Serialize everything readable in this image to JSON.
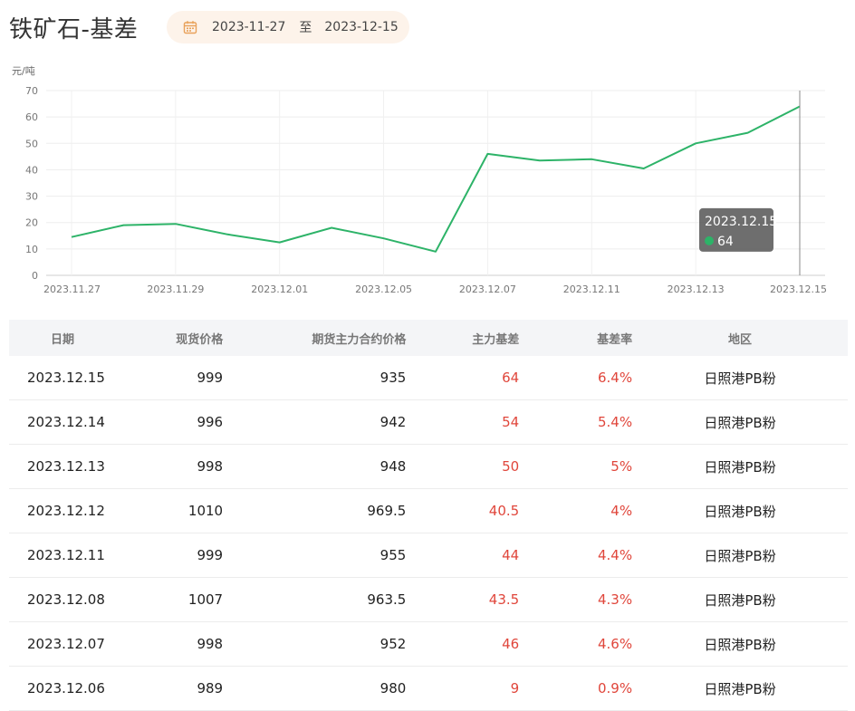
{
  "header": {
    "title": "铁矿石-基差",
    "date_start": "2023-11-27",
    "date_sep": "至",
    "date_end": "2023-12-15",
    "calendar_icon": "calendar-icon",
    "accent_color": "#e8a15a"
  },
  "chart_data": {
    "type": "line",
    "ylabel": "元/吨",
    "ylim": [
      0,
      70
    ],
    "yticks": [
      0,
      10,
      20,
      30,
      40,
      50,
      60,
      70
    ],
    "x": [
      "2023.11.27",
      "2023.11.28",
      "2023.11.29",
      "2023.11.30",
      "2023.12.01",
      "2023.12.04",
      "2023.12.05",
      "2023.12.06",
      "2023.12.07",
      "2023.12.08",
      "2023.12.11",
      "2023.12.12",
      "2023.12.13",
      "2023.12.14",
      "2023.12.15"
    ],
    "xtick_labels": [
      "2023.11.27",
      "2023.11.29",
      "2023.12.01",
      "2023.12.05",
      "2023.12.07",
      "2023.12.11",
      "2023.12.13",
      "2023.12.15"
    ],
    "series": [
      {
        "values": [
          14.5,
          19,
          19.5,
          15.5,
          12.5,
          18,
          14,
          9,
          46,
          43.5,
          44,
          40.5,
          50,
          54,
          64
        ],
        "color": "#2db368"
      }
    ],
    "grid": true,
    "tooltip": {
      "label": "2023.12.15",
      "value": "64"
    }
  },
  "table": {
    "headers": [
      "日期",
      "现货价格",
      "期货主力合约价格",
      "主力基差",
      "基差率",
      "地区"
    ],
    "rows": [
      [
        "2023.12.15",
        "999",
        "935",
        "64",
        "6.4%",
        "日照港PB粉"
      ],
      [
        "2023.12.14",
        "996",
        "942",
        "54",
        "5.4%",
        "日照港PB粉"
      ],
      [
        "2023.12.13",
        "998",
        "948",
        "50",
        "5%",
        "日照港PB粉"
      ],
      [
        "2023.12.12",
        "1010",
        "969.5",
        "40.5",
        "4%",
        "日照港PB粉"
      ],
      [
        "2023.12.11",
        "999",
        "955",
        "44",
        "4.4%",
        "日照港PB粉"
      ],
      [
        "2023.12.08",
        "1007",
        "963.5",
        "43.5",
        "4.3%",
        "日照港PB粉"
      ],
      [
        "2023.12.07",
        "998",
        "952",
        "46",
        "4.6%",
        "日照港PB粉"
      ],
      [
        "2023.12.06",
        "989",
        "980",
        "9",
        "0.9%",
        "日照港PB粉"
      ]
    ]
  }
}
